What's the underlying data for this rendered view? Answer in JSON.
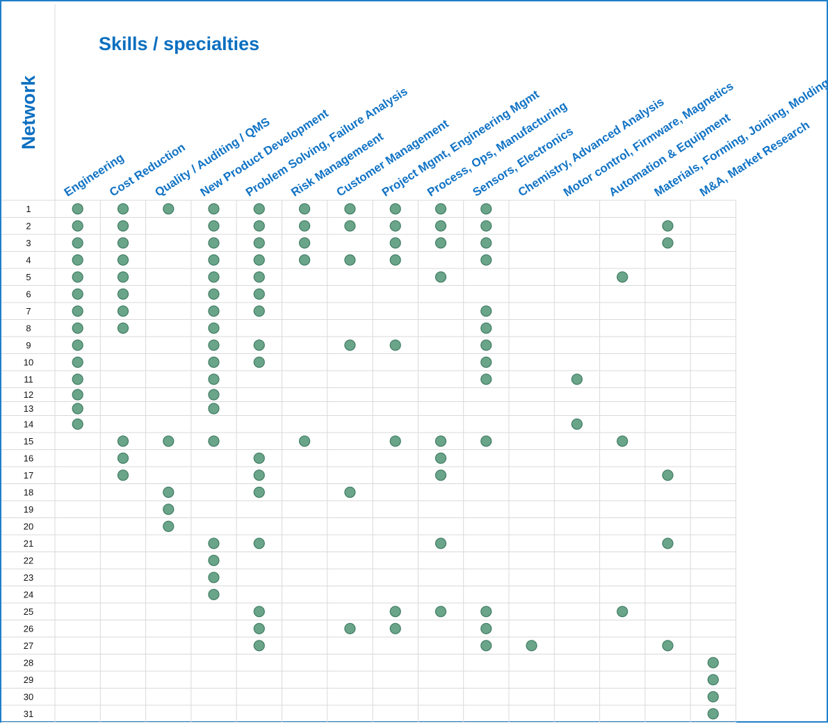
{
  "chart_data": {
    "type": "table",
    "title": "Skills / specialties",
    "row_axis_label": "Network",
    "columns": [
      "Engineering",
      "Cost Reduction",
      "Quality / Auditing / QMS",
      "New Product Development",
      "Problem Solving, Failure Analysis",
      "Risk Managemeent",
      "Customer Management",
      "Project Mgmt, Engineering Mgmt",
      "Process, Ops, Manufacturing",
      "Sensors, Electronics",
      "Chemistry, Advanced Analysis",
      "Motor control, Firmware, Magnetics",
      "Automation & Equipment",
      "Materials, Forming, Joining, Molding",
      "M&A, Market Research"
    ],
    "rows": [
      {
        "label": "1",
        "skills": [
          0,
          1,
          2,
          3,
          4,
          5,
          6,
          7,
          8,
          9
        ]
      },
      {
        "label": "2",
        "skills": [
          0,
          1,
          3,
          4,
          5,
          6,
          7,
          8,
          9,
          13
        ]
      },
      {
        "label": "3",
        "skills": [
          0,
          1,
          3,
          4,
          5,
          7,
          8,
          9,
          13
        ]
      },
      {
        "label": "4",
        "skills": [
          0,
          1,
          3,
          4,
          5,
          6,
          7,
          9
        ]
      },
      {
        "label": "5",
        "skills": [
          0,
          1,
          3,
          4,
          8,
          12
        ]
      },
      {
        "label": "6",
        "skills": [
          0,
          1,
          3,
          4
        ]
      },
      {
        "label": "7",
        "skills": [
          0,
          1,
          3,
          4,
          9
        ]
      },
      {
        "label": "8",
        "skills": [
          0,
          1,
          3,
          9
        ]
      },
      {
        "label": "9",
        "skills": [
          0,
          3,
          4,
          6,
          7,
          9
        ]
      },
      {
        "label": "10",
        "skills": [
          0,
          3,
          4,
          9
        ]
      },
      {
        "label": "11",
        "skills": [
          0,
          3,
          9,
          11
        ]
      },
      {
        "label": "12",
        "skills": [
          0,
          3
        ]
      },
      {
        "label": "13",
        "skills": [
          0,
          3
        ]
      },
      {
        "label": "14",
        "skills": [
          0,
          11
        ]
      },
      {
        "label": "15",
        "skills": [
          1,
          2,
          3,
          5,
          7,
          8,
          9,
          12
        ]
      },
      {
        "label": "16",
        "skills": [
          1,
          4,
          8
        ]
      },
      {
        "label": "17",
        "skills": [
          1,
          4,
          8,
          13
        ]
      },
      {
        "label": "18",
        "skills": [
          2,
          4,
          6
        ]
      },
      {
        "label": "19",
        "skills": [
          2
        ]
      },
      {
        "label": "20",
        "skills": [
          2
        ]
      },
      {
        "label": "21",
        "skills": [
          3,
          4,
          8,
          13
        ]
      },
      {
        "label": "22",
        "skills": [
          3
        ]
      },
      {
        "label": "23",
        "skills": [
          3
        ]
      },
      {
        "label": "24",
        "skills": [
          3
        ]
      },
      {
        "label": "25",
        "skills": [
          4,
          7,
          8,
          9,
          12
        ]
      },
      {
        "label": "26",
        "skills": [
          4,
          6,
          7,
          9
        ]
      },
      {
        "label": "27",
        "skills": [
          4,
          9,
          10,
          13
        ]
      },
      {
        "label": "28",
        "skills": [
          14
        ]
      },
      {
        "label": "29",
        "skills": [
          14
        ]
      },
      {
        "label": "30",
        "skills": [
          14
        ]
      },
      {
        "label": "31",
        "skills": [
          14
        ]
      }
    ],
    "marker_color": "#6aa58a",
    "marker_stroke": "#3e7a61",
    "grid": true
  }
}
